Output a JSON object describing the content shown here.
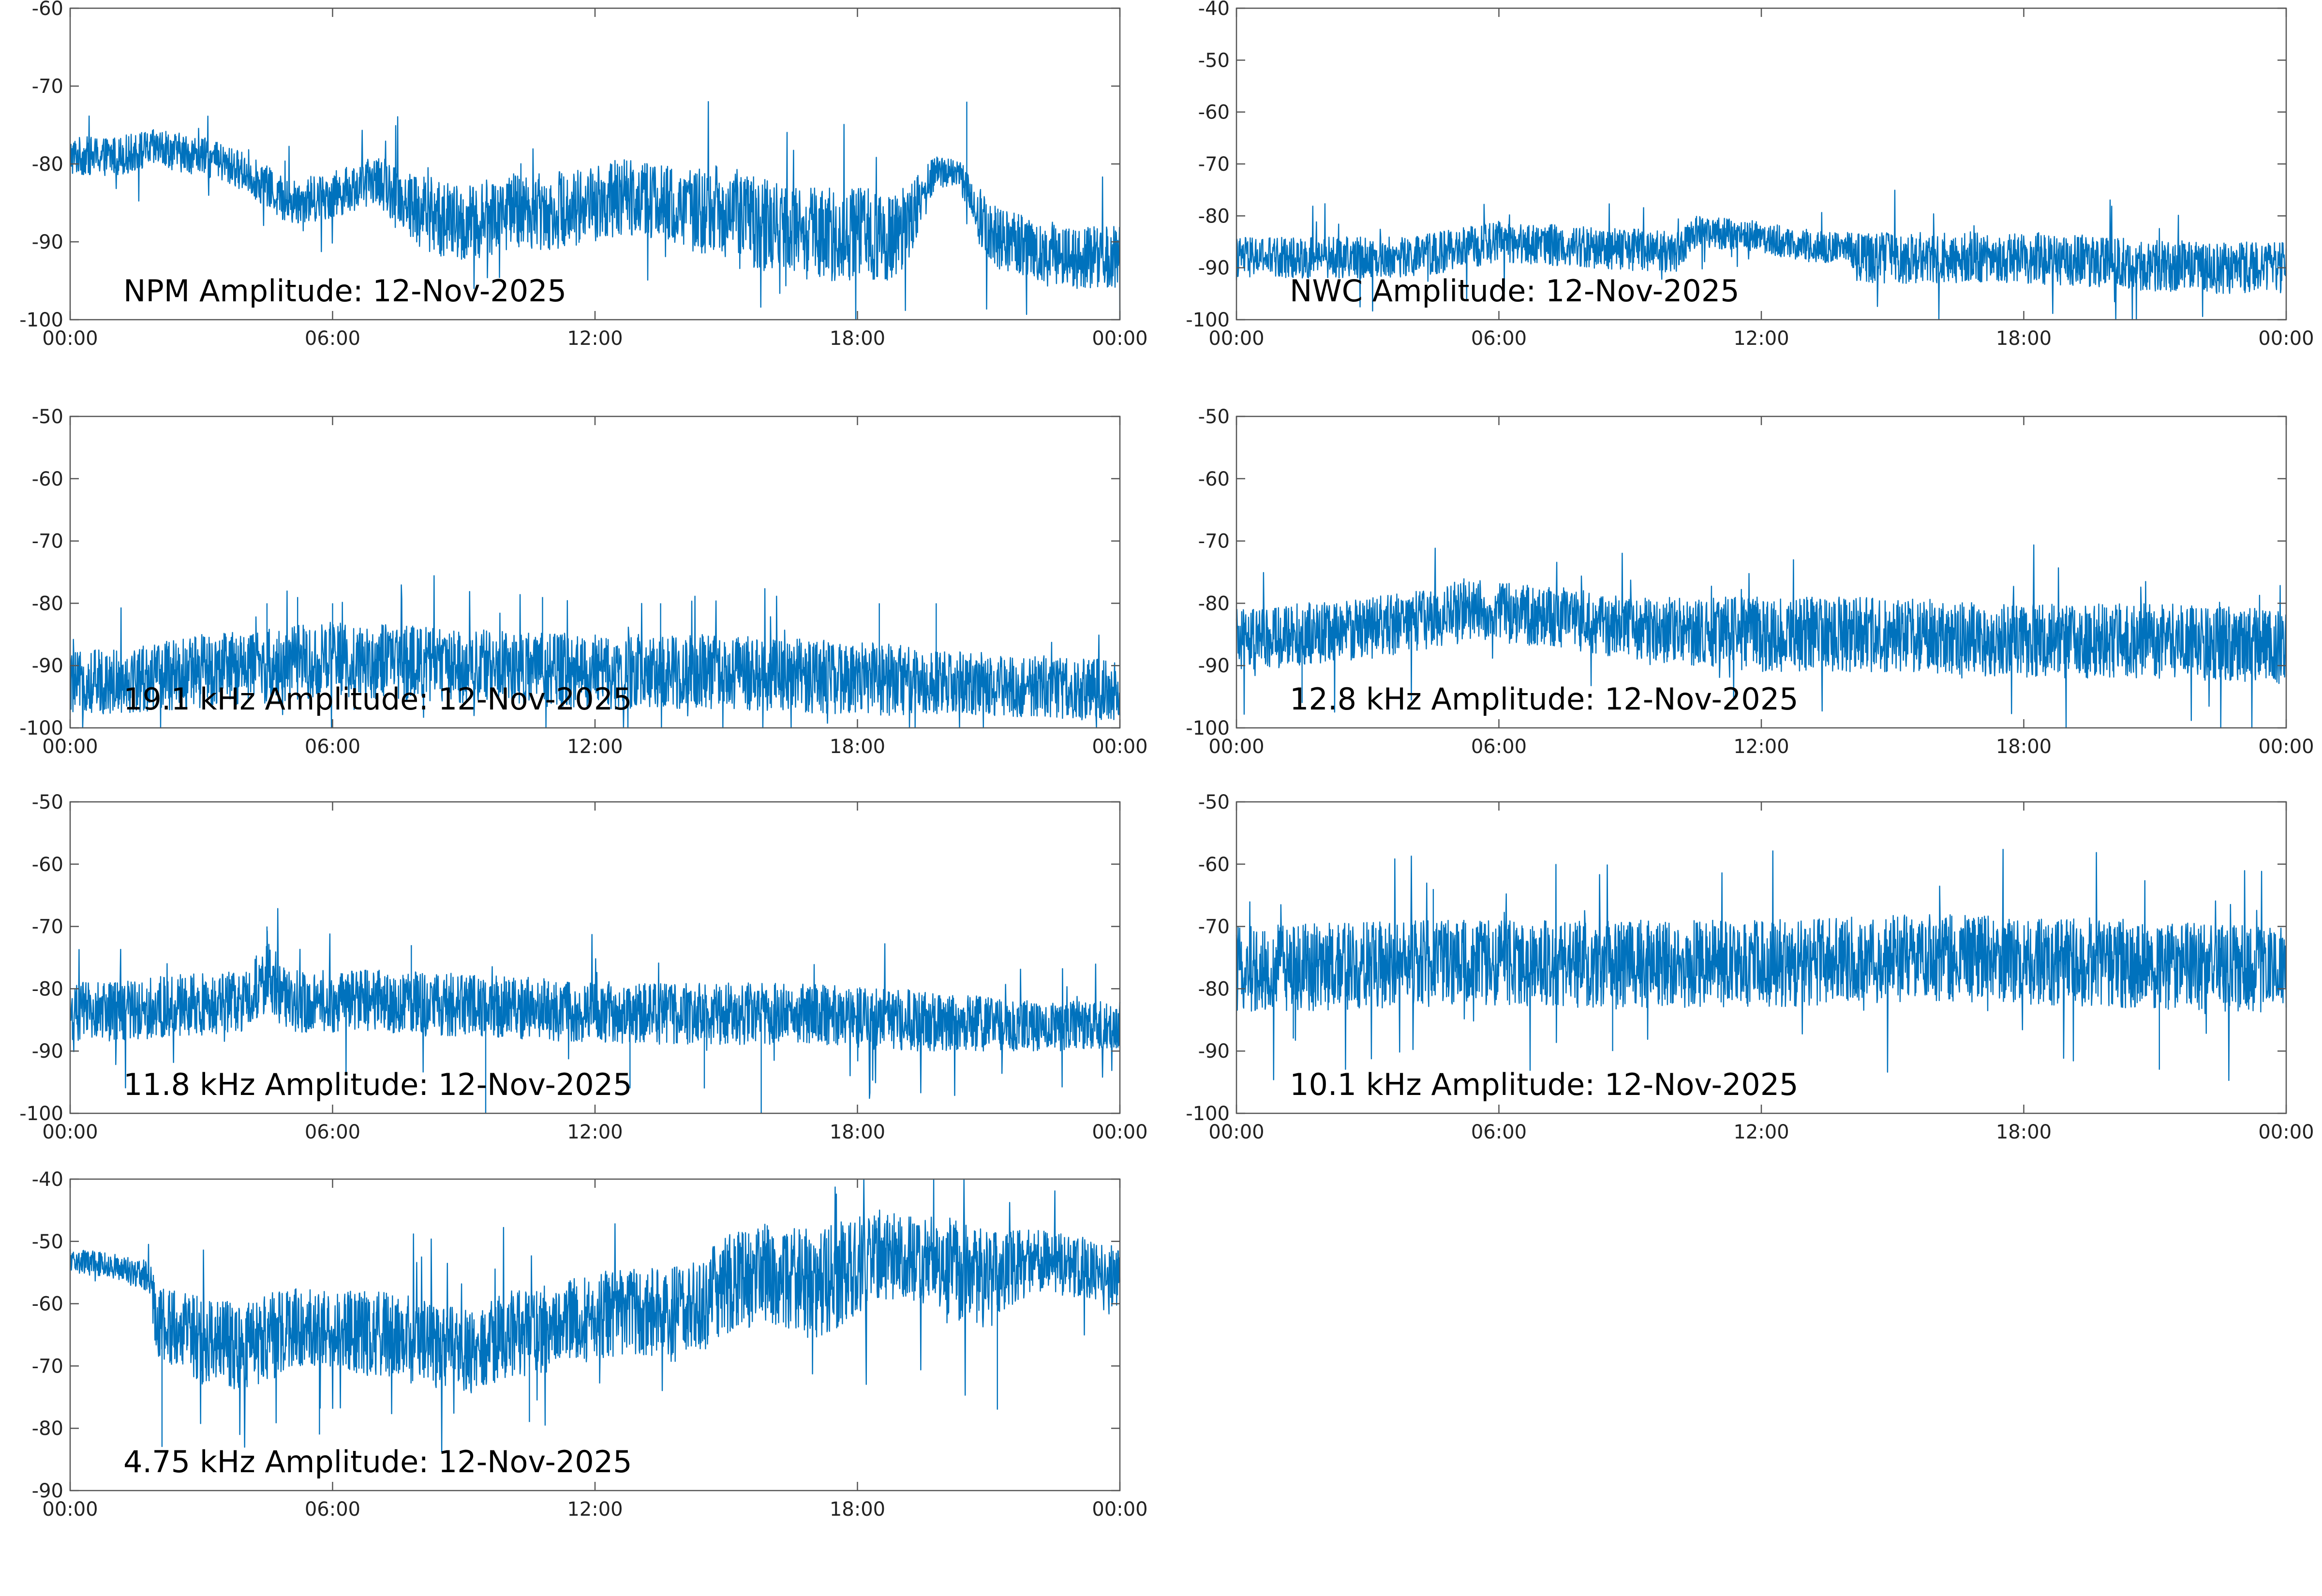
{
  "figure": {
    "series_color": "#0072BD",
    "axis_color": "#555555",
    "background": "#ffffff"
  },
  "chart_data": [
    {
      "type": "line",
      "title": "NPM Amplitude: 12-Nov-2025",
      "xlabel": "",
      "ylabel": "",
      "xticks": [
        "00:00",
        "06:00",
        "12:00",
        "18:00",
        "00:00"
      ],
      "xlim_hours": [
        0,
        24
      ],
      "ylim": [
        -100,
        -60
      ],
      "yticks": [
        -100,
        -90,
        -80,
        -70,
        -60
      ],
      "grid": false,
      "series": [
        {
          "name": "NPM",
          "envelope_hours": [
            0,
            1,
            2,
            3,
            4,
            5,
            6,
            7,
            8,
            9,
            10,
            11,
            12,
            13,
            14,
            15,
            16,
            17,
            18,
            19,
            19.8,
            20.3,
            20.8,
            21,
            22,
            23,
            24
          ],
          "mean_db": [
            -79,
            -79,
            -78,
            -79,
            -81,
            -85,
            -84,
            -82,
            -86,
            -88,
            -86,
            -86,
            -85,
            -84,
            -86,
            -86,
            -88,
            -89,
            -89,
            -89,
            -81,
            -81,
            -87,
            -89,
            -91,
            -92,
            -92
          ],
          "spread_db": [
            2.5,
            2.5,
            2.5,
            2.5,
            2.5,
            3,
            3,
            3,
            5,
            5,
            5,
            5,
            5,
            5,
            5,
            6,
            6,
            6,
            6,
            6,
            2,
            2,
            4,
            4,
            4,
            4,
            4
          ],
          "spikes": [
            [
              20.5,
              -72
            ]
          ]
        }
      ]
    },
    {
      "type": "line",
      "title": "NWC Amplitude: 12-Nov-2025",
      "xlabel": "",
      "ylabel": "",
      "xticks": [
        "00:00",
        "06:00",
        "12:00",
        "18:00",
        "00:00"
      ],
      "xlim_hours": [
        0,
        24
      ],
      "ylim": [
        -100,
        -40
      ],
      "yticks": [
        -100,
        -90,
        -80,
        -70,
        -60,
        -50,
        -40
      ],
      "grid": false,
      "series": [
        {
          "name": "NWC",
          "envelope_hours": [
            0,
            2,
            4,
            6,
            8,
            10,
            10.5,
            12,
            13,
            14,
            14.2,
            16,
            18,
            20,
            22,
            24
          ],
          "mean_db": [
            -88,
            -88,
            -88,
            -85,
            -86,
            -87,
            -83,
            -84,
            -86,
            -86,
            -88,
            -88,
            -88,
            -89,
            -90,
            -90
          ],
          "spread_db": [
            4,
            4,
            4,
            4,
            4,
            4,
            3,
            3,
            3,
            3,
            5,
            5,
            5,
            5,
            5,
            5
          ],
          "spikes": []
        }
      ]
    },
    {
      "type": "line",
      "title": "19.1 kHz Amplitude: 12-Nov-2025",
      "xlabel": "",
      "ylabel": "",
      "xticks": [
        "00:00",
        "06:00",
        "12:00",
        "18:00",
        "00:00"
      ],
      "xlim_hours": [
        0,
        24
      ],
      "ylim": [
        -100,
        -50
      ],
      "yticks": [
        -100,
        -90,
        -80,
        -70,
        -60,
        -50
      ],
      "grid": false,
      "series": [
        {
          "name": "19.1 kHz",
          "envelope_hours": [
            0,
            3,
            6,
            9,
            12,
            15,
            18,
            21,
            24
          ],
          "mean_db": [
            -93,
            -91,
            -89,
            -90,
            -91,
            -91,
            -92,
            -93,
            -94
          ],
          "spread_db": [
            5,
            6,
            6,
            6,
            6,
            6,
            6,
            5,
            5
          ],
          "spikes": [
            [
              4.5,
              -80
            ],
            [
              5.2,
              -79
            ],
            [
              6.0,
              -80
            ],
            [
              10.8,
              -79
            ],
            [
              13.5,
              -80
            ],
            [
              18.5,
              -80
            ],
            [
              19.8,
              -80
            ]
          ]
        }
      ]
    },
    {
      "type": "line",
      "title": "12.8 kHz Amplitude: 12-Nov-2025",
      "xlabel": "",
      "ylabel": "",
      "xticks": [
        "00:00",
        "06:00",
        "12:00",
        "18:00",
        "00:00"
      ],
      "xlim_hours": [
        0,
        24
      ],
      "ylim": [
        -100,
        -50
      ],
      "yticks": [
        -100,
        -90,
        -80,
        -70,
        -60,
        -50
      ],
      "grid": false,
      "series": [
        {
          "name": "12.8 kHz",
          "envelope_hours": [
            0,
            3,
            5.5,
            7,
            9,
            12,
            15,
            18,
            21,
            24
          ],
          "mean_db": [
            -86,
            -84,
            -81,
            -82,
            -84,
            -85,
            -85,
            -86,
            -86,
            -87
          ],
          "spread_db": [
            5,
            5,
            5,
            5,
            5,
            6,
            6,
            6,
            6,
            6
          ],
          "spikes": [
            [
              1.5,
              -96
            ],
            [
              5.2,
              -76
            ]
          ]
        }
      ]
    },
    {
      "type": "line",
      "title": "11.8 kHz Amplitude: 12-Nov-2025",
      "xlabel": "",
      "ylabel": "",
      "xticks": [
        "00:00",
        "06:00",
        "12:00",
        "18:00",
        "00:00"
      ],
      "xlim_hours": [
        0,
        24
      ],
      "ylim": [
        -100,
        -50
      ],
      "yticks": [
        -100,
        -90,
        -80,
        -70,
        -60,
        -50
      ],
      "grid": false,
      "series": [
        {
          "name": "11.8 kHz",
          "envelope_hours": [
            0,
            2,
            4,
            4.5,
            5,
            7,
            10,
            13,
            16,
            19,
            22,
            24
          ],
          "mean_db": [
            -84,
            -83,
            -82,
            -78,
            -82,
            -82,
            -83,
            -84,
            -84,
            -85,
            -86,
            -86
          ],
          "spread_db": [
            5,
            5,
            5,
            6,
            5,
            5,
            5,
            5,
            5,
            5,
            4,
            4
          ],
          "spikes": [
            [
              4.5,
              -70
            ],
            [
              9.5,
              -100
            ],
            [
              12.8,
              -96
            ],
            [
              15.8,
              -100
            ],
            [
              14.5,
              -96
            ],
            [
              7.8,
              -73
            ]
          ]
        }
      ]
    },
    {
      "type": "line",
      "title": "10.1 kHz Amplitude: 12-Nov-2025",
      "xlabel": "",
      "ylabel": "",
      "xticks": [
        "00:00",
        "06:00",
        "12:00",
        "18:00",
        "00:00"
      ],
      "xlim_hours": [
        0,
        24
      ],
      "ylim": [
        -100,
        -50
      ],
      "yticks": [
        -100,
        -90,
        -80,
        -70,
        -60,
        -50
      ],
      "grid": false,
      "series": [
        {
          "name": "10.1 kHz",
          "envelope_hours": [
            0,
            4,
            8,
            12,
            16,
            20,
            24
          ],
          "mean_db": [
            -77,
            -76,
            -76,
            -76,
            -75,
            -76,
            -77
          ],
          "spread_db": [
            7,
            7,
            7,
            7,
            7,
            7,
            7
          ],
          "spikes": [
            [
              1.3,
              -88
            ],
            [
              8.6,
              -90
            ],
            [
              21.1,
              -93
            ],
            [
              4.5,
              -64
            ]
          ]
        }
      ]
    },
    {
      "type": "line",
      "title": "4.75 kHz Amplitude: 12-Nov-2025",
      "xlabel": "",
      "ylabel": "",
      "xticks": [
        "00:00",
        "06:00",
        "12:00",
        "18:00",
        "00:00"
      ],
      "xlim_hours": [
        0,
        24
      ],
      "ylim": [
        -90,
        -40
      ],
      "yticks": [
        -90,
        -80,
        -70,
        -60,
        -50,
        -40
      ],
      "grid": false,
      "series": [
        {
          "name": "4.75 kHz",
          "envelope_hours": [
            0,
            1,
            1.8,
            2,
            3,
            4,
            5,
            6,
            7,
            8,
            9,
            10,
            11,
            12,
            13,
            14,
            15,
            16,
            17,
            18,
            19,
            20,
            21,
            22,
            23,
            24
          ],
          "mean_db": [
            -53,
            -54,
            -56,
            -63,
            -66,
            -67,
            -64,
            -64,
            -65,
            -66,
            -68,
            -65,
            -64,
            -62,
            -61,
            -62,
            -57,
            -55,
            -57,
            -54,
            -52,
            -54,
            -56,
            -53,
            -54,
            -56
          ],
          "spread_db": [
            2,
            2,
            3,
            6,
            7,
            7,
            7,
            6,
            7,
            7,
            7,
            7,
            7,
            7,
            7,
            8,
            8,
            8,
            9,
            8,
            7,
            8,
            8,
            5,
            5,
            5
          ],
          "spikes": [
            [
              2.1,
              -83
            ],
            [
              5.7,
              -81
            ],
            [
              10.5,
              -79
            ],
            [
              21.2,
              -77
            ],
            [
              19.2,
              -48
            ]
          ]
        }
      ]
    }
  ]
}
